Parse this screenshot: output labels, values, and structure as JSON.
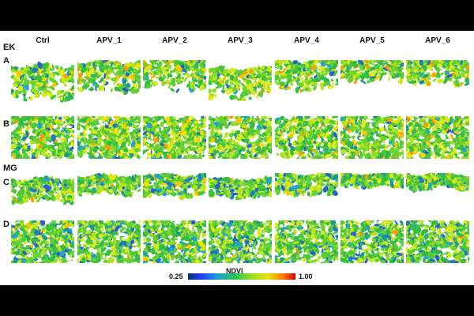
{
  "columns": [
    "Ctrl",
    "APV_1",
    "APV_2",
    "APV_3",
    "APV_4",
    "APV_5",
    "APV_6"
  ],
  "groups": [
    {
      "label": "EK",
      "rows": [
        {
          "label": "A",
          "view": "side"
        },
        {
          "label": "B",
          "view": "top"
        }
      ]
    },
    {
      "label": "MG",
      "rows": [
        {
          "label": "C",
          "view": "side"
        },
        {
          "label": "D",
          "view": "top"
        }
      ]
    }
  ],
  "legend": {
    "title": "NDVI",
    "min": "0.25",
    "max": "1.00"
  },
  "colors": {
    "low": "#1e3cff",
    "mid": "#28c84a",
    "high": "#d40000",
    "background": "#000000",
    "panel": "#ffffff"
  }
}
